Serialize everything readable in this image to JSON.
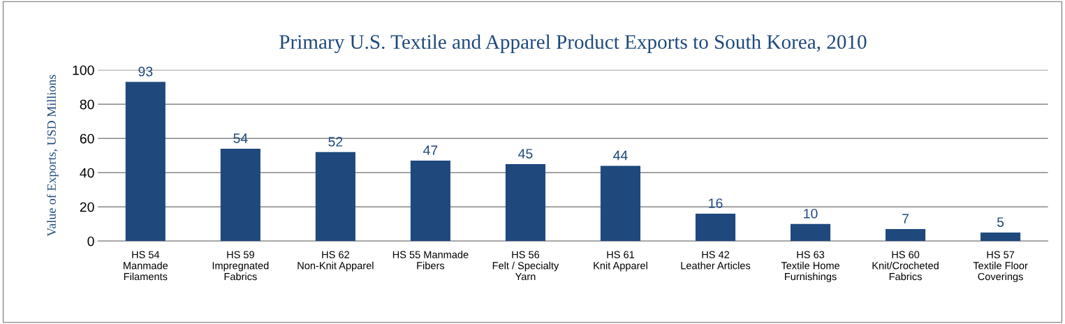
{
  "chart_data": {
    "type": "bar",
    "title": "Primary U.S. Textile and Apparel Product Exports to South Korea, 2010",
    "ylabel": "Value of Exports, USD Millions",
    "categories": [
      "HS 54\nManmade\nFilaments",
      "HS 59\nImpregnated\nFabrics",
      "HS 62\nNon-Knit Apparel",
      "HS 55 Manmade\nFibers",
      "HS 56\nFelt / Specialty\nYarn",
      "HS 61\nKnit Apparel",
      "HS 42\nLeather Articles",
      "HS 63\nTextile Home\nFurnishings",
      "HS 60\nKnit/Crocheted\nFabrics",
      "HS 57\nTextile Floor\nCoverings"
    ],
    "values": [
      93,
      54,
      52,
      47,
      45,
      44,
      16,
      10,
      7,
      5
    ],
    "color": "#1f497d",
    "ylim": [
      0,
      100
    ],
    "yticks": [
      0,
      20,
      40,
      60,
      80,
      100
    ],
    "grid": "y",
    "data_labels": true
  }
}
